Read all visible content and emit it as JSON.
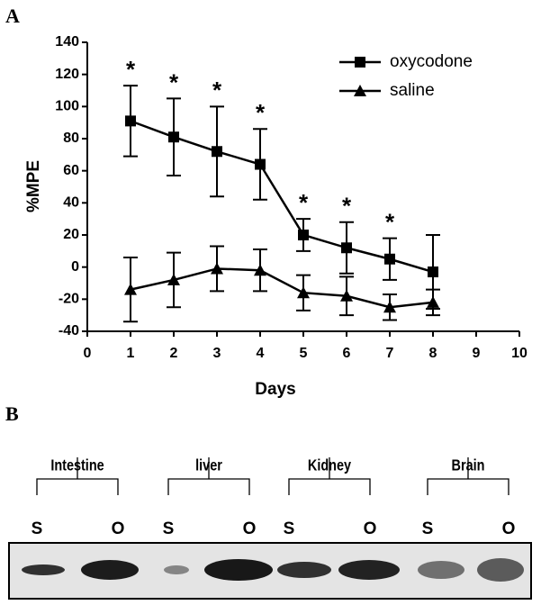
{
  "panel_labels": [
    "A",
    "B"
  ],
  "chart_data": {
    "type": "line",
    "x_label": "Days",
    "y_label": "%MPE",
    "x": [
      1,
      2,
      3,
      4,
      5,
      6,
      7,
      8
    ],
    "series": [
      {
        "name": "oxycodone",
        "color": "#000000",
        "marker": "square",
        "values": [
          91,
          81,
          72,
          64,
          20,
          12,
          5,
          -3
        ],
        "errors": [
          22,
          24,
          28,
          22,
          10,
          16,
          13,
          23
        ]
      },
      {
        "name": "saline",
        "color": "#000000",
        "marker": "triangle",
        "values": [
          -14,
          -8,
          -1,
          -2,
          -16,
          -18,
          -25,
          -22
        ],
        "errors": [
          20,
          17,
          14,
          13,
          11,
          12,
          8,
          8
        ]
      }
    ],
    "annotations": [
      {
        "x": 1,
        "text": "*"
      },
      {
        "x": 2,
        "text": "*"
      },
      {
        "x": 3,
        "text": "*"
      },
      {
        "x": 4,
        "text": "*"
      },
      {
        "x": 5,
        "text": "*"
      },
      {
        "x": 6,
        "text": "*"
      },
      {
        "x": 7,
        "text": "*"
      }
    ],
    "xlim": [
      0,
      10
    ],
    "xticks": [
      0,
      1,
      2,
      3,
      4,
      5,
      6,
      7,
      8,
      9,
      10
    ],
    "ylim": [
      -40,
      140
    ],
    "yticks": [
      -40,
      -20,
      0,
      20,
      40,
      60,
      80,
      100,
      120,
      140
    ],
    "legend": "upper right",
    "grid": false
  },
  "blot": {
    "tissues": [
      {
        "name": "Intestine",
        "lanes": [
          "S",
          "O"
        ]
      },
      {
        "name": "liver",
        "lanes": [
          "S",
          "O"
        ]
      },
      {
        "name": "Kidney",
        "lanes": [
          "S",
          "O"
        ]
      },
      {
        "name": "Brain",
        "lanes": [
          "S",
          "O"
        ]
      }
    ]
  }
}
